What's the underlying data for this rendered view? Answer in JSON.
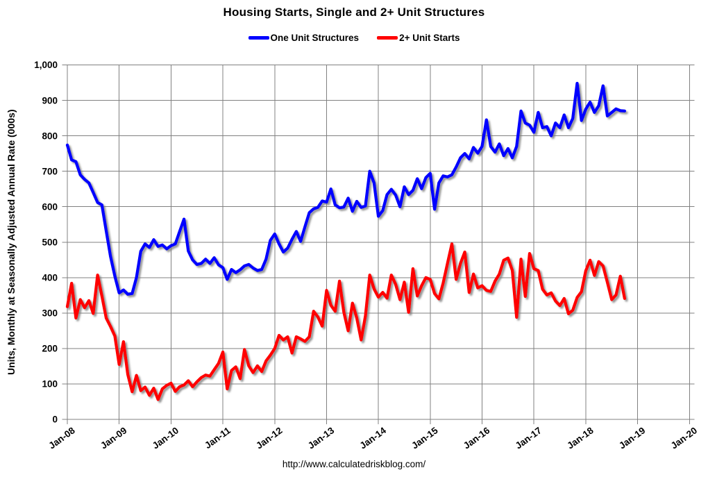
{
  "title": "Housing Starts, Single and 2+ Unit Structures",
  "footer_url": "http://www.calculatedriskblog.com/",
  "legend": [
    {
      "label": "One Unit Structures",
      "color": "#0000FF"
    },
    {
      "label": "2+ Unit Starts",
      "color": "#FF0000"
    }
  ],
  "colors": {
    "grid": "#808080",
    "text": "#000000",
    "background": "#FFFFFF"
  },
  "chart_data": {
    "type": "line",
    "title": "Housing Starts, Single and 2+ Unit Structures",
    "xlabel": "",
    "ylabel": "Units, Monthly at Seasonally Adjusted Annual Rate (000s)",
    "ylim": [
      0,
      1000
    ],
    "grid": true,
    "legend_position": "top-center",
    "x_start": "Jan-08",
    "x_frequency": "monthly",
    "x_axis_span_months": 144,
    "x_tick_labels": [
      "Jan-08",
      "Jan-09",
      "Jan-10",
      "Jan-11",
      "Jan-12",
      "Jan-13",
      "Jan-14",
      "Jan-15",
      "Jan-16",
      "Jan-17",
      "Jan-18",
      "Jan-19",
      "Jan-20"
    ],
    "y_ticks": [
      0,
      100,
      200,
      300,
      400,
      500,
      600,
      700,
      800,
      900,
      1000
    ],
    "y_tick_labels": [
      "0",
      "100",
      "200",
      "300",
      "400",
      "500",
      "600",
      "700",
      "800",
      "900",
      "1,000"
    ],
    "series": [
      {
        "name": "One Unit Structures",
        "color": "#0000FF",
        "first_month": "Jan-08",
        "last_month": "Oct-18",
        "values": [
          774,
          732,
          727,
          690,
          677,
          667,
          640,
          612,
          605,
          532,
          460,
          404,
          357,
          365,
          353,
          355,
          400,
          474,
          495,
          485,
          507,
          488,
          492,
          481,
          490,
          495,
          530,
          565,
          475,
          450,
          437,
          440,
          452,
          440,
          456,
          436,
          428,
          395,
          423,
          414,
          422,
          433,
          437,
          427,
          420,
          423,
          452,
          505,
          523,
          495,
          472,
          483,
          508,
          530,
          502,
          543,
          583,
          594,
          598,
          616,
          613,
          650,
          605,
          597,
          599,
          624,
          587,
          615,
          598,
          602,
          700,
          667,
          573,
          589,
          634,
          649,
          633,
          600,
          656,
          634,
          646,
          679,
          651,
          682,
          694,
          593,
          667,
          687,
          684,
          690,
          712,
          738,
          750,
          735,
          767,
          751,
          770,
          845,
          770,
          754,
          777,
          744,
          764,
          738,
          770,
          870,
          836,
          830,
          810,
          866,
          823,
          826,
          800,
          836,
          823,
          859,
          823,
          849,
          948,
          843,
          875,
          895,
          866,
          885,
          941,
          856,
          866,
          876,
          871,
          870
        ]
      },
      {
        "name": "2+ Unit Starts",
        "color": "#FF0000",
        "first_month": "Jan-08",
        "last_month": "Oct-18",
        "values": [
          318,
          384,
          286,
          338,
          315,
          335,
          299,
          407,
          348,
          286,
          262,
          235,
          155,
          219,
          127,
          78,
          124,
          81,
          91,
          68,
          88,
          56,
          86,
          96,
          102,
          79,
          92,
          97,
          109,
          92,
          106,
          118,
          125,
          122,
          140,
          158,
          190,
          86,
          138,
          148,
          115,
          197,
          151,
          132,
          151,
          135,
          165,
          181,
          200,
          237,
          224,
          233,
          187,
          233,
          227,
          220,
          233,
          305,
          289,
          263,
          364,
          322,
          305,
          390,
          302,
          250,
          328,
          286,
          224,
          292,
          407,
          368,
          345,
          358,
          342,
          407,
          381,
          338,
          387,
          302,
          425,
          348,
          377,
          400,
          395,
          355,
          340,
          385,
          440,
          495,
          395,
          440,
          472,
          358,
          410,
          371,
          377,
          364,
          361,
          390,
          410,
          449,
          455,
          420,
          288,
          452,
          347,
          468,
          425,
          420,
          367,
          351,
          357,
          334,
          321,
          341,
          298,
          308,
          344,
          360,
          419,
          449,
          406,
          445,
          433,
          387,
          338,
          351,
          404,
          341
        ]
      }
    ]
  }
}
